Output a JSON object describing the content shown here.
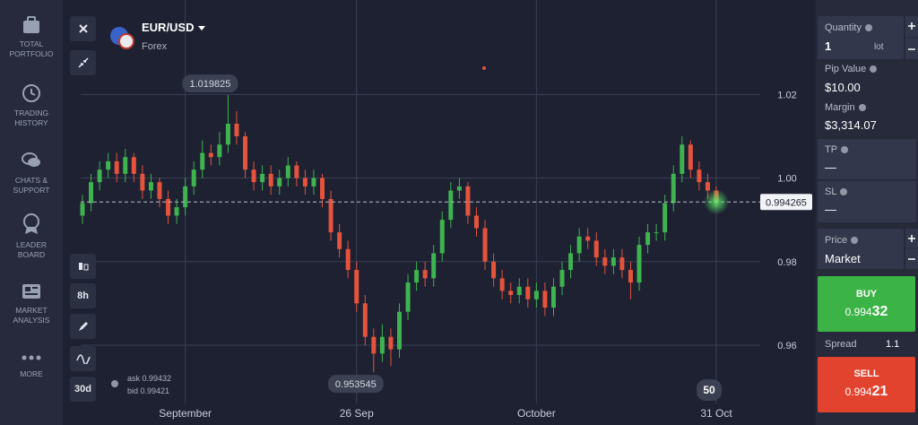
{
  "sidebar": {
    "items": [
      {
        "label": "TOTAL PORTFOLIO"
      },
      {
        "label": "TRADING HISTORY"
      },
      {
        "label": "CHATS & SUPPORT"
      },
      {
        "label": "LEADER BOARD"
      },
      {
        "label": "MARKET ANALYSIS"
      },
      {
        "label": "MORE"
      }
    ]
  },
  "instrument": {
    "name": "EUR/USD",
    "market": "Forex"
  },
  "tools": {
    "timeframe": "8h",
    "range": "30d",
    "ask": "ask 0.99432",
    "bid": "bid 0.99421",
    "badge": "50"
  },
  "chart_data": {
    "type": "candlestick",
    "categories": [
      null,
      null,
      null,
      null,
      null,
      null,
      null,
      null,
      null,
      null,
      null,
      null,
      "September",
      null,
      null,
      null,
      null,
      null,
      null,
      null,
      null,
      null,
      null,
      null,
      null,
      null,
      null,
      null,
      null,
      null,
      null,
      null,
      "26 Sep",
      null,
      null,
      null,
      null,
      null,
      null,
      null,
      null,
      null,
      null,
      null,
      null,
      null,
      null,
      null,
      null,
      null,
      null,
      null,
      null,
      "October",
      null,
      null,
      null,
      null,
      null,
      null,
      null,
      null,
      null,
      null,
      null,
      null,
      null,
      null,
      null,
      null,
      null,
      null,
      null,
      null,
      "31 Oct"
    ],
    "open": [
      0.991,
      0.994,
      0.999,
      1.002,
      1.004,
      1.001,
      1.005,
      1.001,
      0.997,
      0.999,
      0.995,
      0.991,
      0.993,
      0.998,
      1.002,
      1.006,
      1.005,
      1.008,
      1.013,
      1.01,
      1.002,
      0.999,
      1.001,
      0.998,
      1.0,
      1.003,
      1.0,
      0.998,
      1.0,
      0.995,
      0.987,
      0.983,
      0.978,
      0.97,
      0.962,
      0.958,
      0.962,
      0.959,
      0.968,
      0.975,
      0.978,
      0.976,
      0.982,
      0.99,
      0.997,
      0.998,
      0.991,
      0.988,
      0.98,
      0.976,
      0.973,
      0.972,
      0.974,
      0.971,
      0.973,
      0.969,
      0.974,
      0.978,
      0.982,
      0.986,
      0.985,
      0.981,
      0.979,
      0.981,
      0.978,
      0.975,
      0.984,
      0.987,
      0.987,
      0.994,
      1.001,
      1.008,
      1.002,
      0.999,
      0.997
    ],
    "high": [
      0.996,
      1.001,
      1.004,
      1.006,
      1.006,
      1.007,
      1.006,
      1.003,
      1.001,
      1.0,
      0.997,
      0.995,
      1.0,
      1.004,
      1.009,
      1.008,
      1.011,
      1.019825,
      1.016,
      1.011,
      1.004,
      1.003,
      1.003,
      1.002,
      1.005,
      1.004,
      1.002,
      1.002,
      1.001,
      0.997,
      0.989,
      0.985,
      0.98,
      0.972,
      0.964,
      0.965,
      0.964,
      0.97,
      0.977,
      0.98,
      0.98,
      0.984,
      0.992,
      0.999,
      1.0,
      0.999,
      0.993,
      0.99,
      0.982,
      0.978,
      0.975,
      0.976,
      0.976,
      0.975,
      0.975,
      0.976,
      0.98,
      0.984,
      0.988,
      0.988,
      0.987,
      0.983,
      0.983,
      0.983,
      0.98,
      0.986,
      0.989,
      0.989,
      0.996,
      1.003,
      1.01,
      1.009,
      1.004,
      1.001,
      0.998
    ],
    "low": [
      0.989,
      0.992,
      0.997,
      1.0,
      0.999,
      0.999,
      0.999,
      0.995,
      0.995,
      0.993,
      0.989,
      0.989,
      0.991,
      0.996,
      1.0,
      1.003,
      1.003,
      1.006,
      1.008,
      1.0,
      0.997,
      0.997,
      0.996,
      0.996,
      0.998,
      0.998,
      0.996,
      0.996,
      0.993,
      0.985,
      0.981,
      0.976,
      0.968,
      0.96,
      0.953545,
      0.956,
      0.955,
      0.957,
      0.966,
      0.973,
      0.974,
      0.974,
      0.98,
      0.988,
      0.995,
      0.989,
      0.986,
      0.978,
      0.974,
      0.971,
      0.97,
      0.97,
      0.969,
      0.969,
      0.967,
      0.967,
      0.972,
      0.976,
      0.98,
      0.983,
      0.979,
      0.977,
      0.977,
      0.976,
      0.971,
      0.973,
      0.982,
      0.985,
      0.985,
      0.992,
      0.999,
      1.0,
      0.997,
      0.995,
      0.993
    ],
    "close": [
      0.994,
      0.999,
      1.002,
      1.004,
      1.001,
      1.005,
      1.001,
      0.997,
      0.999,
      0.995,
      0.991,
      0.993,
      0.998,
      1.002,
      1.006,
      1.005,
      1.008,
      1.013,
      1.01,
      1.002,
      0.999,
      1.001,
      0.998,
      1.0,
      1.003,
      1.0,
      0.998,
      1.0,
      0.995,
      0.987,
      0.983,
      0.978,
      0.97,
      0.962,
      0.958,
      0.962,
      0.959,
      0.968,
      0.975,
      0.978,
      0.976,
      0.982,
      0.99,
      0.997,
      0.998,
      0.991,
      0.988,
      0.98,
      0.976,
      0.973,
      0.972,
      0.974,
      0.971,
      0.973,
      0.969,
      0.974,
      0.978,
      0.982,
      0.986,
      0.985,
      0.981,
      0.979,
      0.981,
      0.978,
      0.975,
      0.984,
      0.987,
      0.987,
      0.994,
      1.001,
      1.008,
      1.002,
      0.999,
      0.997,
      0.994265
    ],
    "up_color": "#3fb34f",
    "down_color": "#e5533d",
    "ylim": [
      0.9409,
      1.0426
    ],
    "yticks": [
      0.96,
      0.98,
      {
        "value": 1.0,
        "label": "1.00"
      },
      1.02
    ],
    "grid": true,
    "max_marker": 1.019825,
    "min_marker": 0.953545,
    "current_price": 0.994265
  },
  "order_panel": {
    "quantity_label": "Quantity",
    "quantity": "1",
    "quantity_unit": "lot",
    "pip_value_label": "Pip Value",
    "pip_value": "$10.00",
    "margin_label": "Margin",
    "margin": "$3,314.07",
    "tp_label": "TP",
    "tp": "—",
    "sl_label": "SL",
    "sl": "—",
    "price_label": "Price",
    "price": "Market",
    "buy_label": "BUY",
    "buy_price_main": "0.994",
    "buy_price_pips": "32",
    "spread_label": "Spread",
    "spread": "1.1",
    "sell_label": "SELL",
    "sell_price_main": "0.994",
    "sell_price_pips": "21"
  }
}
